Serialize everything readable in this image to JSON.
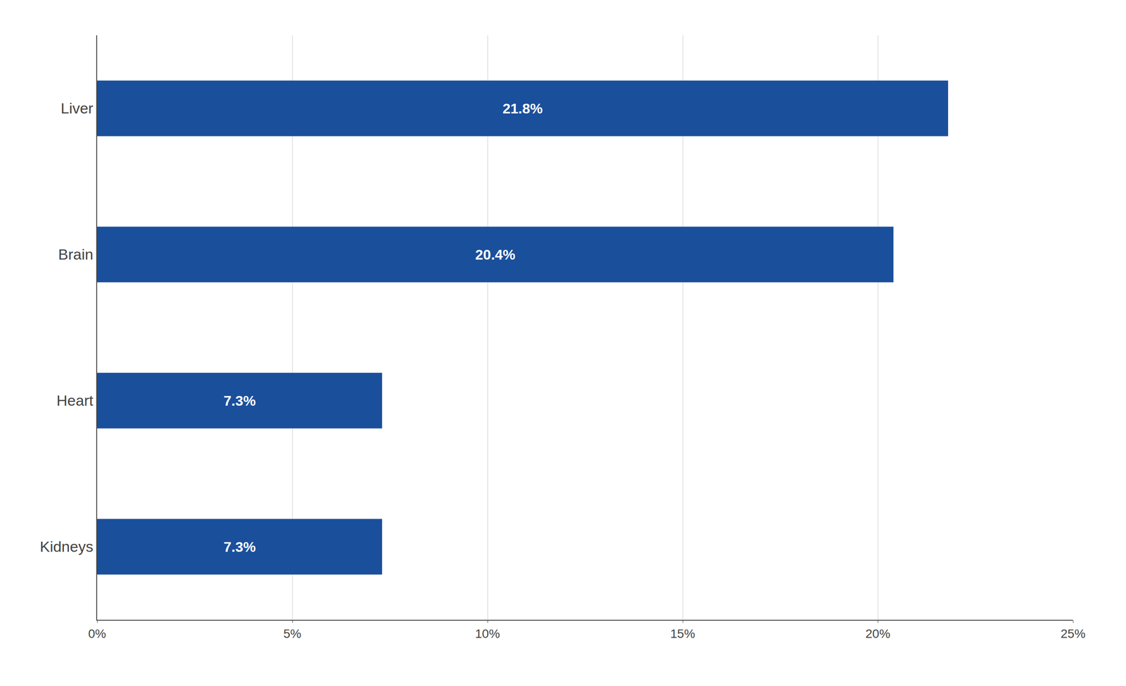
{
  "chart_data": {
    "type": "bar",
    "orientation": "horizontal",
    "categories": [
      "Liver",
      "Brain",
      "Heart",
      "Kidneys"
    ],
    "values": [
      21.8,
      20.4,
      7.3,
      7.3
    ],
    "value_labels": [
      "21.8%",
      "20.4%",
      "7.3%",
      "7.3%"
    ],
    "data_labels": true,
    "color": "#1a4f9c",
    "xlim": [
      0,
      25
    ],
    "xticks": [
      {
        "value": 0,
        "label": "0%"
      },
      {
        "value": 5,
        "label": "5%"
      },
      {
        "value": 10,
        "label": "10%"
      },
      {
        "value": 15,
        "label": "15%"
      },
      {
        "value": 20,
        "label": "20%"
      },
      {
        "value": 25,
        "label": "25%"
      }
    ],
    "grid": true
  }
}
